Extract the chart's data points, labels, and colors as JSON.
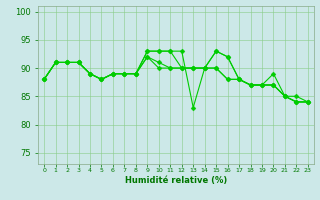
{
  "lines": [
    [
      88,
      91,
      91,
      91,
      89,
      88,
      89,
      89,
      89,
      92,
      90,
      90,
      90,
      90,
      90,
      90,
      88,
      88,
      87,
      87,
      87,
      85,
      84,
      84
    ],
    [
      88,
      91,
      91,
      91,
      89,
      88,
      89,
      89,
      89,
      93,
      93,
      93,
      93,
      83,
      90,
      93,
      92,
      88,
      87,
      87,
      89,
      85,
      85,
      84
    ],
    [
      88,
      91,
      91,
      91,
      89,
      88,
      89,
      89,
      89,
      92,
      91,
      90,
      90,
      90,
      90,
      93,
      92,
      88,
      87,
      87,
      87,
      85,
      84,
      84
    ],
    [
      88,
      91,
      91,
      91,
      89,
      88,
      89,
      89,
      89,
      93,
      93,
      93,
      90,
      90,
      90,
      90,
      88,
      88,
      87,
      87,
      87,
      85,
      84,
      84
    ]
  ],
  "x": [
    0,
    1,
    2,
    3,
    4,
    5,
    6,
    7,
    8,
    9,
    10,
    11,
    12,
    13,
    14,
    15,
    16,
    17,
    18,
    19,
    20,
    21,
    22,
    23
  ],
  "line_color": "#00cc00",
  "marker": "D",
  "marker_size": 2.5,
  "line_width": 0.8,
  "bg_color": "#cce8e8",
  "grid_color": "#88cc88",
  "xlabel": "Humidité relative (%)",
  "ylim": [
    73,
    101
  ],
  "yticks": [
    75,
    80,
    85,
    90,
    95,
    100
  ],
  "xtick_labels": [
    "0",
    "1",
    "2",
    "3",
    "4",
    "5",
    "6",
    "7",
    "8",
    "9",
    "10",
    "11",
    "12",
    "13",
    "14",
    "15",
    "16",
    "17",
    "18",
    "19",
    "20",
    "21",
    "22",
    "23"
  ],
  "tick_color": "#007700",
  "xlabel_fontsize": 6,
  "ytick_fontsize": 6,
  "xtick_fontsize": 4.5
}
